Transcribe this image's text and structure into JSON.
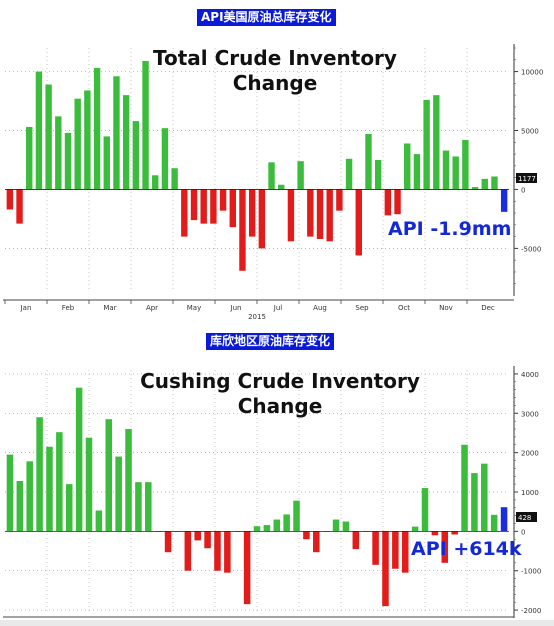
{
  "chart_data": [
    {
      "type": "bar",
      "banner": "API美国原油总库存变化",
      "title_line1": "Total Crude Inventory",
      "title_line2": "Change",
      "annotation": "API -1.9mm",
      "year_label": "2015",
      "last_value_tag": "1177",
      "ylim": [
        -8700,
        12000
      ],
      "y_ticks": [
        10000,
        5000,
        0,
        -5000
      ],
      "y_tick_labels": [
        "10000",
        "5000",
        "0",
        "-5000"
      ],
      "months": [
        "Jan",
        "Feb",
        "Mar",
        "Apr",
        "May",
        "Jun",
        "Jul",
        "Aug",
        "Sep",
        "Oct",
        "Nov",
        "Dec"
      ],
      "values": [
        -1700,
        -2900,
        5300,
        10000,
        8900,
        6200,
        4800,
        7700,
        8400,
        10300,
        4500,
        9600,
        8000,
        5800,
        10900,
        1200,
        5200,
        1800,
        -4000,
        -2600,
        -2900,
        -2900,
        -1800,
        -3200,
        -6900,
        -4000,
        -5000,
        2300,
        400,
        -4400,
        2400,
        -4000,
        -4200,
        -4400,
        -1800,
        2600,
        -5600,
        4700,
        2500,
        -2200,
        -2100,
        3900,
        3000,
        7600,
        8000,
        3300,
        2800,
        4200,
        200,
        900,
        1100,
        -1900
      ],
      "colors": {
        "positive": "#3cbc3c",
        "negative": "#e21b1b",
        "latest": "#1a2ce0",
        "tag_bg": "#111111"
      }
    },
    {
      "type": "bar",
      "banner": "库欣地区原油库存变化",
      "title_line1": "Cushing Crude Inventory",
      "title_line2": "Change",
      "annotation": "API +614k",
      "last_value_tag": "428",
      "ylim": [
        -2100,
        4100
      ],
      "y_ticks": [
        4000,
        3000,
        2000,
        1000,
        0,
        -1000,
        -2000
      ],
      "y_tick_labels": [
        "4000",
        "3000",
        "2000",
        "1000",
        "0",
        "-1000",
        "-2000"
      ],
      "values": [
        1950,
        1280,
        1780,
        2900,
        2150,
        2520,
        1200,
        3650,
        2380,
        530,
        2850,
        1900,
        2600,
        1250,
        1250,
        0,
        -530,
        0,
        -1000,
        -230,
        -430,
        -1000,
        -1050,
        0,
        -1850,
        130,
        160,
        300,
        430,
        780,
        -200,
        -530,
        0,
        300,
        250,
        -450,
        0,
        -850,
        -1900,
        -950,
        -1050,
        120,
        1100,
        -100,
        -800,
        -80,
        2200,
        1480,
        1720,
        420,
        614
      ],
      "colors": {
        "positive": "#3cbc3c",
        "negative": "#e21b1b",
        "latest": "#1a2ce0",
        "tag_bg": "#111111"
      }
    }
  ]
}
